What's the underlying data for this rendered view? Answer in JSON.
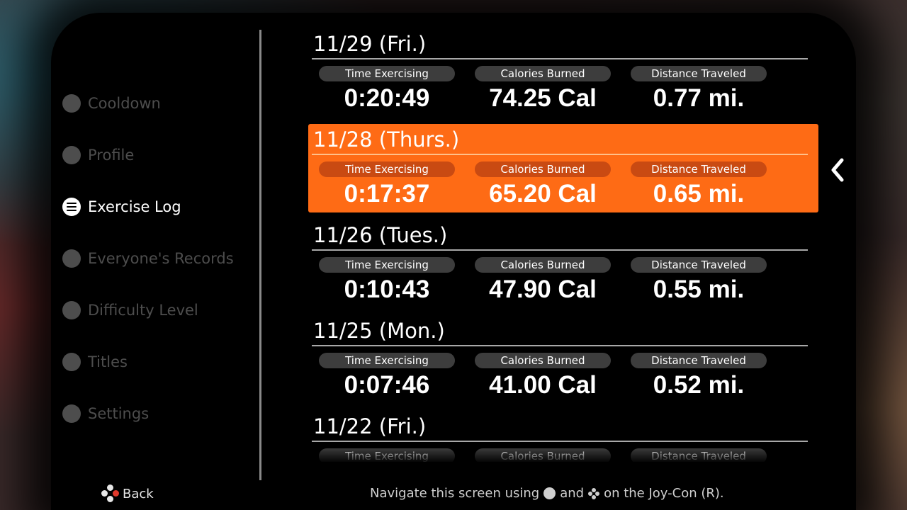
{
  "sidebar": {
    "items": [
      {
        "label": "Cooldown",
        "icon": "cooldown-icon",
        "active": false
      },
      {
        "label": "Profile",
        "icon": "profile-icon",
        "active": false
      },
      {
        "label": "Exercise Log",
        "icon": "list-icon",
        "active": true
      },
      {
        "label": "Everyone's Records",
        "icon": "group-icon",
        "active": false
      },
      {
        "label": "Difficulty Level",
        "icon": "difficulty-icon",
        "active": false
      },
      {
        "label": "Titles",
        "icon": "trophy-icon",
        "active": false
      },
      {
        "label": "Settings",
        "icon": "gear-icon",
        "active": false
      }
    ]
  },
  "log": {
    "labels": {
      "time": "Time Exercising",
      "calories": "Calories Burned",
      "distance": "Distance Traveled"
    },
    "entries": [
      {
        "date": "11/29 (Fri.)",
        "time": "0:20:49",
        "calories": "74.25 Cal",
        "distance": "0.77 mi."
      },
      {
        "date": "11/28 (Thurs.)",
        "time": "0:17:37",
        "calories": "65.20 Cal",
        "distance": "0.65 mi."
      },
      {
        "date": "11/26 (Tues.)",
        "time": "0:10:43",
        "calories": "47.90 Cal",
        "distance": "0.55 mi."
      },
      {
        "date": "11/25 (Mon.)",
        "time": "0:07:46",
        "calories": "41.00 Cal",
        "distance": "0.52 mi."
      },
      {
        "date": "11/22 (Fri.)",
        "time": "",
        "calories": "",
        "distance": ""
      }
    ],
    "selected_index": 1
  },
  "footer": {
    "back_label": "Back",
    "hint_part1": "Navigate this screen using",
    "hint_part2": "and",
    "hint_part3": "on the Joy-Con (R)."
  },
  "colors": {
    "accent": "#fe6b15",
    "accent_label": "#c94a12",
    "inactive_text": "#4d4d4d"
  }
}
